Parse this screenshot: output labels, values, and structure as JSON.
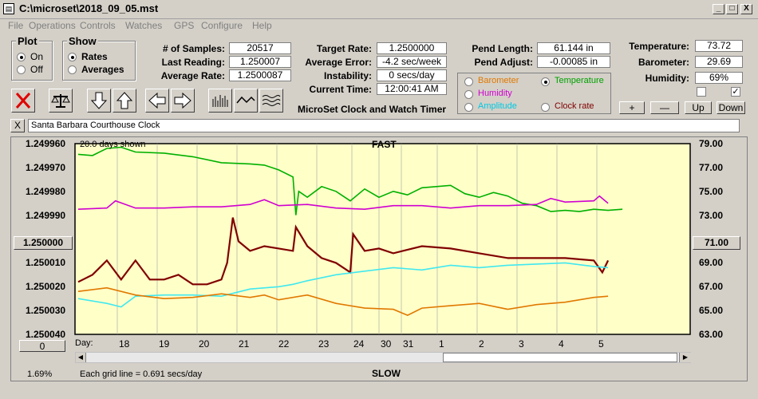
{
  "window": {
    "title": "C:\\microset\\2018_09_05.mst",
    "min": "_",
    "max": "□",
    "close": "X"
  },
  "menu": [
    "File",
    "Operations",
    "Controls",
    "Watches",
    "GPS",
    "Configure",
    "Help"
  ],
  "plot_group": {
    "title": "Plot",
    "options": [
      "On",
      "Off"
    ],
    "selected": "On"
  },
  "show_group": {
    "title": "Show",
    "options": [
      "Rates",
      "Averages"
    ],
    "selected": "Rates"
  },
  "stats": {
    "samples_label": "# of Samples:",
    "samples": "20517",
    "last_reading_label": "Last Reading:",
    "last_reading": "1.250007",
    "average_rate_label": "Average Rate:",
    "average_rate": "1.2500087"
  },
  "rates": {
    "target_label": "Target Rate:",
    "target": "1.2500000",
    "avg_error_label": "Average Error:",
    "avg_error": "-4.2 sec/week",
    "instability_label": "Instability:",
    "instability": "0 secs/day",
    "current_time_label": "Current Time:",
    "current_time": "12:00:41 AM"
  },
  "app_caption": "MicroSet Clock and Watch Timer",
  "pendulum": {
    "length_label": "Pend Length:",
    "length": "61.144 in",
    "adjust_label": "Pend Adjust:",
    "adjust": "-0.00085 in"
  },
  "sensors": {
    "options": [
      {
        "label": "Barometer",
        "color": "#e07800",
        "selected": false
      },
      {
        "label": "Temperature",
        "color": "#00a000",
        "selected": true
      },
      {
        "label": "Humidity",
        "color": "#d000d0",
        "selected": false
      },
      {
        "label": "Amplitude",
        "color": "#00c8e0",
        "selected": false
      },
      {
        "label": "Clock rate",
        "color": "#800000",
        "selected": false
      }
    ]
  },
  "env": {
    "temperature_label": "Temperature:",
    "temperature": "73.72",
    "barometer_label": "Barometer:",
    "barometer": "29.69",
    "humidity_label": "Humidity:",
    "humidity": "69%",
    "check1": false,
    "check2": true
  },
  "env_buttons": [
    "+",
    "—",
    "Up",
    "Down"
  ],
  "toolbar_icons": [
    "clear-icon",
    "balance-icon",
    "arrow-down-icon",
    "arrow-up-icon",
    "arrow-left-icon",
    "arrow-right-icon",
    "bars-icon",
    "wave-icon",
    "multi-wave-icon"
  ],
  "description_close": "X",
  "description": "Santa Barbara Courthouse Clock",
  "chart_header": {
    "days_shown": "20.0 days shown",
    "fast": "FAST",
    "slow": "SLOW",
    "grid_note": "Each grid line = 0.691 secs/day",
    "percent": "1.69%",
    "day_label": "Day:"
  },
  "left_axis": [
    "1.249960",
    "1.249970",
    "1.249980",
    "1.249990",
    "1.250000",
    "1.250010",
    "1.250020",
    "1.250030",
    "1.250040"
  ],
  "left_center_button": "1.250000",
  "left_bottom_button": "0",
  "right_axis": [
    "79.00",
    "77.00",
    "75.00",
    "73.00",
    "71.00",
    "69.00",
    "67.00",
    "65.00",
    "63.00"
  ],
  "right_center_button": "71.00",
  "x_ticks": [
    "18",
    "19",
    "20",
    "21",
    "22",
    "23",
    "24",
    "30",
    "31",
    "1",
    "2",
    "3",
    "4",
    "5"
  ],
  "chart_data": {
    "type": "line",
    "x_unit": "day index",
    "left_ylim": [
      1.25004,
      1.24996
    ],
    "right_ylim": [
      63.0,
      79.0
    ],
    "series": [
      {
        "name": "Temperature",
        "axis": "right",
        "color": "#00b000",
        "points": [
          [
            0,
            78.1
          ],
          [
            0.5,
            78.0
          ],
          [
            1,
            78.6
          ],
          [
            1.5,
            78.7
          ],
          [
            2,
            78.3
          ],
          [
            3,
            78.2
          ],
          [
            4,
            77.9
          ],
          [
            5,
            77.4
          ],
          [
            6,
            77.3
          ],
          [
            6.5,
            77.2
          ],
          [
            7,
            76.8
          ],
          [
            7.5,
            76.2
          ],
          [
            7.6,
            73.0
          ],
          [
            7.7,
            75.0
          ],
          [
            8,
            74.5
          ],
          [
            8.5,
            75.4
          ],
          [
            9,
            75.0
          ],
          [
            9.5,
            74.2
          ],
          [
            10,
            75.2
          ],
          [
            10.5,
            74.5
          ],
          [
            11,
            75.0
          ],
          [
            11.5,
            74.7
          ],
          [
            12,
            75.3
          ],
          [
            13,
            75.5
          ],
          [
            13.5,
            74.8
          ],
          [
            14,
            74.5
          ],
          [
            14.5,
            74.9
          ],
          [
            15,
            74.6
          ],
          [
            15.5,
            74.0
          ],
          [
            16,
            73.8
          ],
          [
            16.5,
            73.3
          ],
          [
            17,
            73.4
          ],
          [
            17.5,
            73.3
          ],
          [
            18,
            73.5
          ],
          [
            18.5,
            73.4
          ],
          [
            19,
            73.5
          ]
        ]
      },
      {
        "name": "Humidity",
        "axis": "right",
        "color": "#d000d0",
        "points": [
          [
            0,
            73.5
          ],
          [
            1,
            73.6
          ],
          [
            1.3,
            74.2
          ],
          [
            2,
            73.6
          ],
          [
            3,
            73.6
          ],
          [
            4,
            73.7
          ],
          [
            5,
            73.7
          ],
          [
            6,
            73.9
          ],
          [
            6.5,
            74.3
          ],
          [
            7,
            73.8
          ],
          [
            8,
            73.9
          ],
          [
            9,
            73.6
          ],
          [
            10,
            73.5
          ],
          [
            11,
            73.8
          ],
          [
            12,
            73.8
          ],
          [
            13,
            73.6
          ],
          [
            14,
            73.8
          ],
          [
            15,
            73.8
          ],
          [
            16,
            73.9
          ],
          [
            16.5,
            74.4
          ],
          [
            17,
            74.1
          ],
          [
            18,
            74.2
          ],
          [
            18.2,
            74.6
          ],
          [
            18.5,
            74.0
          ]
        ]
      },
      {
        "name": "Clock rate",
        "axis": "left",
        "color": "#800000",
        "points": [
          [
            0,
            1.250018
          ],
          [
            0.5,
            1.250015
          ],
          [
            1,
            1.250009
          ],
          [
            1.5,
            1.250017
          ],
          [
            2,
            1.250009
          ],
          [
            2.5,
            1.250017
          ],
          [
            3,
            1.250017
          ],
          [
            3.5,
            1.250015
          ],
          [
            4,
            1.250019
          ],
          [
            4.5,
            1.250019
          ],
          [
            5,
            1.250017
          ],
          [
            5.2,
            1.25001
          ],
          [
            5.4,
            1.249991
          ],
          [
            5.6,
            1.250001
          ],
          [
            6,
            1.250005
          ],
          [
            6.5,
            1.250003
          ],
          [
            7,
            1.250004
          ],
          [
            7.5,
            1.250005
          ],
          [
            7.6,
            1.249995
          ],
          [
            8,
            1.250003
          ],
          [
            8.5,
            1.250008
          ],
          [
            9,
            1.25001
          ],
          [
            9.5,
            1.250014
          ],
          [
            9.6,
            1.249998
          ],
          [
            10,
            1.250005
          ],
          [
            10.5,
            1.250004
          ],
          [
            11,
            1.250006
          ],
          [
            12,
            1.250003
          ],
          [
            13,
            1.250004
          ],
          [
            14,
            1.250006
          ],
          [
            15,
            1.250008
          ],
          [
            16,
            1.250008
          ],
          [
            17,
            1.250008
          ],
          [
            18,
            1.250009
          ],
          [
            18.3,
            1.250014
          ],
          [
            18.5,
            1.250009
          ]
        ]
      },
      {
        "name": "Amplitude",
        "axis": "right",
        "color": "#40e8f0",
        "points": [
          [
            0,
            66.0
          ],
          [
            1,
            65.6
          ],
          [
            1.5,
            65.3
          ],
          [
            2,
            66.2
          ],
          [
            3,
            66.3
          ],
          [
            4,
            66.3
          ],
          [
            5,
            66.2
          ],
          [
            5.5,
            66.5
          ],
          [
            6,
            66.8
          ],
          [
            7,
            67.0
          ],
          [
            7.5,
            67.2
          ],
          [
            8,
            67.5
          ],
          [
            9,
            68.0
          ],
          [
            10,
            68.3
          ],
          [
            11,
            68.6
          ],
          [
            12,
            68.4
          ],
          [
            13,
            68.8
          ],
          [
            14,
            68.6
          ],
          [
            15,
            68.8
          ],
          [
            16,
            68.9
          ],
          [
            17,
            69.0
          ],
          [
            18,
            68.7
          ],
          [
            18.5,
            68.6
          ]
        ]
      },
      {
        "name": "Barometer",
        "axis": "right",
        "color": "#e07800",
        "points": [
          [
            0,
            66.6
          ],
          [
            1,
            66.9
          ],
          [
            2,
            66.3
          ],
          [
            3,
            66.0
          ],
          [
            4,
            66.1
          ],
          [
            5,
            66.4
          ],
          [
            6,
            66.1
          ],
          [
            6.5,
            66.3
          ],
          [
            7,
            65.9
          ],
          [
            8,
            66.3
          ],
          [
            9,
            65.6
          ],
          [
            10,
            65.2
          ],
          [
            11,
            65.1
          ],
          [
            11.5,
            64.6
          ],
          [
            12,
            65.2
          ],
          [
            13,
            65.4
          ],
          [
            14,
            65.6
          ],
          [
            15,
            65.1
          ],
          [
            16,
            65.5
          ],
          [
            17,
            65.7
          ],
          [
            18,
            66.1
          ],
          [
            18.5,
            66.2
          ]
        ]
      }
    ]
  }
}
